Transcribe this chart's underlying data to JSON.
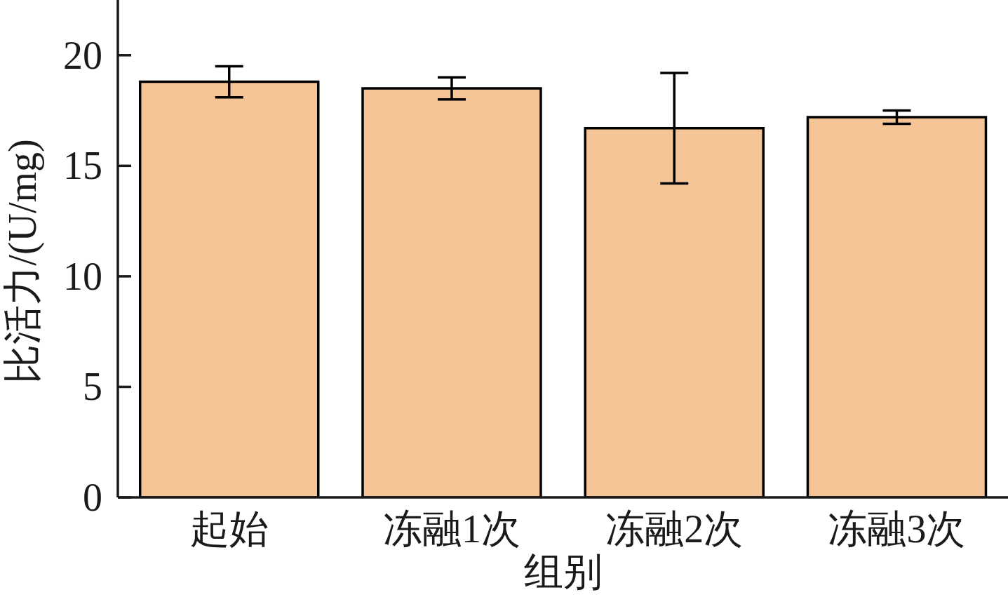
{
  "chart_data": {
    "type": "bar",
    "xlabel": "组别",
    "ylabel": "比活力/(U/mg)",
    "categories": [
      "起始",
      "冻融1次",
      "冻融2次",
      "冻融3次"
    ],
    "values": [
      18.8,
      18.5,
      16.7,
      17.2
    ],
    "errors": [
      0.7,
      0.5,
      2.5,
      0.3
    ],
    "color": "#f5c598",
    "ylim": [
      0,
      22.5
    ],
    "yticks": [
      0,
      5,
      10,
      15,
      20
    ]
  }
}
